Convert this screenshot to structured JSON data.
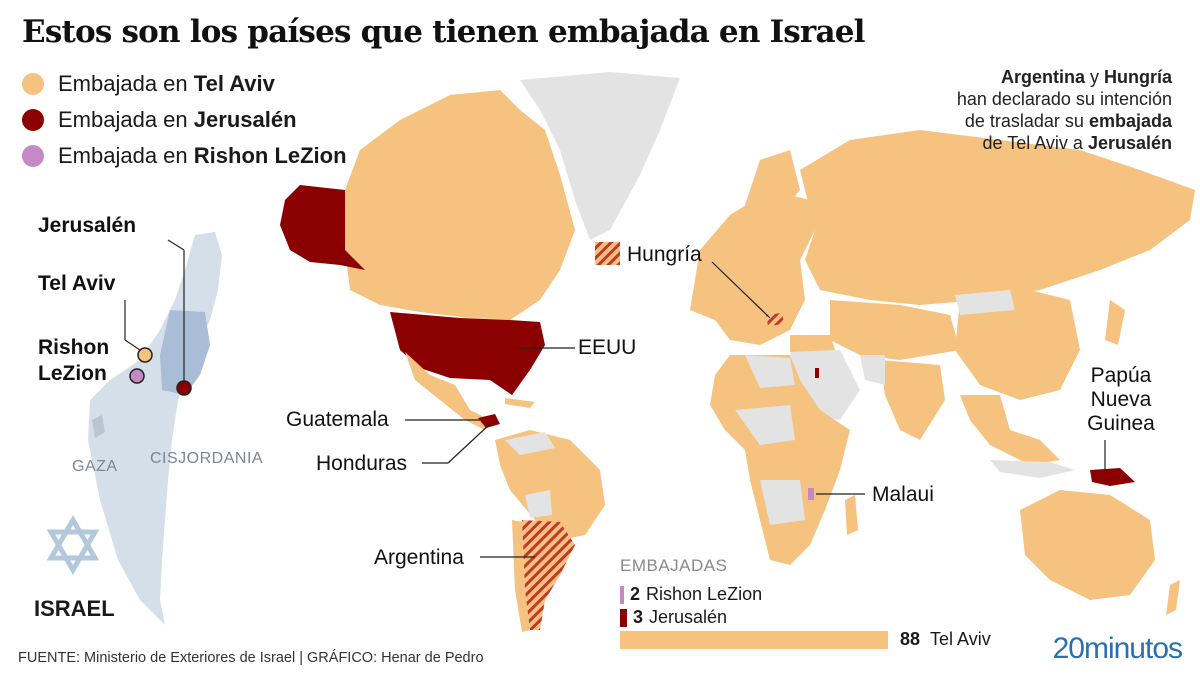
{
  "title": "Estos son los países que tienen embajada en Israel",
  "colors": {
    "tel_aviv": "#f5c27f",
    "jerusalen": "#8b0000",
    "rishon": "#c58ac6",
    "no_embassy": "#e3e3e3",
    "israel_land": "#d4dfea",
    "cisjordania": "#a9bdd6"
  },
  "legend": [
    {
      "prefix": "Embajada en ",
      "city": "Tel Aviv",
      "color": "#f5c27f"
    },
    {
      "prefix": "Embajada en ",
      "city": "Jerusalén",
      "color": "#8b0000"
    },
    {
      "prefix": "Embajada en ",
      "city": "Rishon LeZion",
      "color": "#c58ac6"
    }
  ],
  "note": {
    "country1": "Argentina",
    "conj": " y ",
    "country2": "Hungría",
    "line2": "han declarado su intención",
    "line3a": "de trasladar su ",
    "line3b": "embajada",
    "line4a": "de Tel Aviv a ",
    "line4b": "Jerusalén"
  },
  "israel": {
    "cities": {
      "jerusalen": "Jerusalén",
      "tel_aviv": "Tel Aviv",
      "rishon_1": "Rishon",
      "rishon_2": "LeZion"
    },
    "regions": {
      "gaza": "GAZA",
      "cisjordania": "CISJORDANIA"
    },
    "name": "ISRAEL"
  },
  "countries": {
    "hungria": "Hungría",
    "eeuu": "EEUU",
    "guatemala": "Guatemala",
    "honduras": "Honduras",
    "argentina": "Argentina",
    "papua_1": "Papúa",
    "papua_2": "Nueva",
    "papua_3": "Guinea",
    "malaui": "Malaui"
  },
  "stats": {
    "title": "EMBAJADAS",
    "items": [
      {
        "count": "2",
        "label": "Rishon LeZion",
        "value": 2,
        "color": "#c58ac6"
      },
      {
        "count": "3",
        "label": "Jerusalén",
        "value": 3,
        "color": "#8b0000"
      },
      {
        "count": "88",
        "label": "Tel Aviv",
        "value": 88,
        "color": "#f5c27f"
      }
    ]
  },
  "source": "FUENTE: Ministerio de Exteriores de Israel  |  GRÁFICO: Henar de Pedro",
  "brand": {
    "num": "20",
    "word": "minutos"
  }
}
